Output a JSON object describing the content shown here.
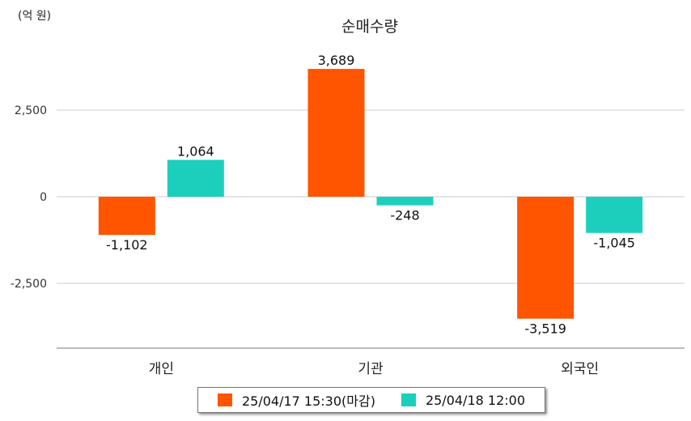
{
  "chart_data": {
    "type": "bar",
    "title": "순매수량",
    "unit_label": "(억 원)",
    "categories": [
      "개인",
      "기관",
      "외국인"
    ],
    "series": [
      {
        "name": "25/04/17 15:30(마감)",
        "values": [
          -1102,
          3689,
          -3519
        ],
        "labels": [
          "-1,102",
          "3,689",
          "-3,519"
        ],
        "color": "#ff5400"
      },
      {
        "name": "25/04/18 12:00",
        "values": [
          1064,
          -248,
          -1045
        ],
        "labels": [
          "1,064",
          "-248",
          "-1,045"
        ],
        "color": "#1ccfbd"
      }
    ],
    "yticks": [
      {
        "value": 2500,
        "label": "2,500"
      },
      {
        "value": 0,
        "label": "0"
      },
      {
        "value": -2500,
        "label": "-2,500"
      }
    ],
    "ylim": [
      -4390,
      4790
    ],
    "grid": true,
    "legend_position": "bottom"
  }
}
